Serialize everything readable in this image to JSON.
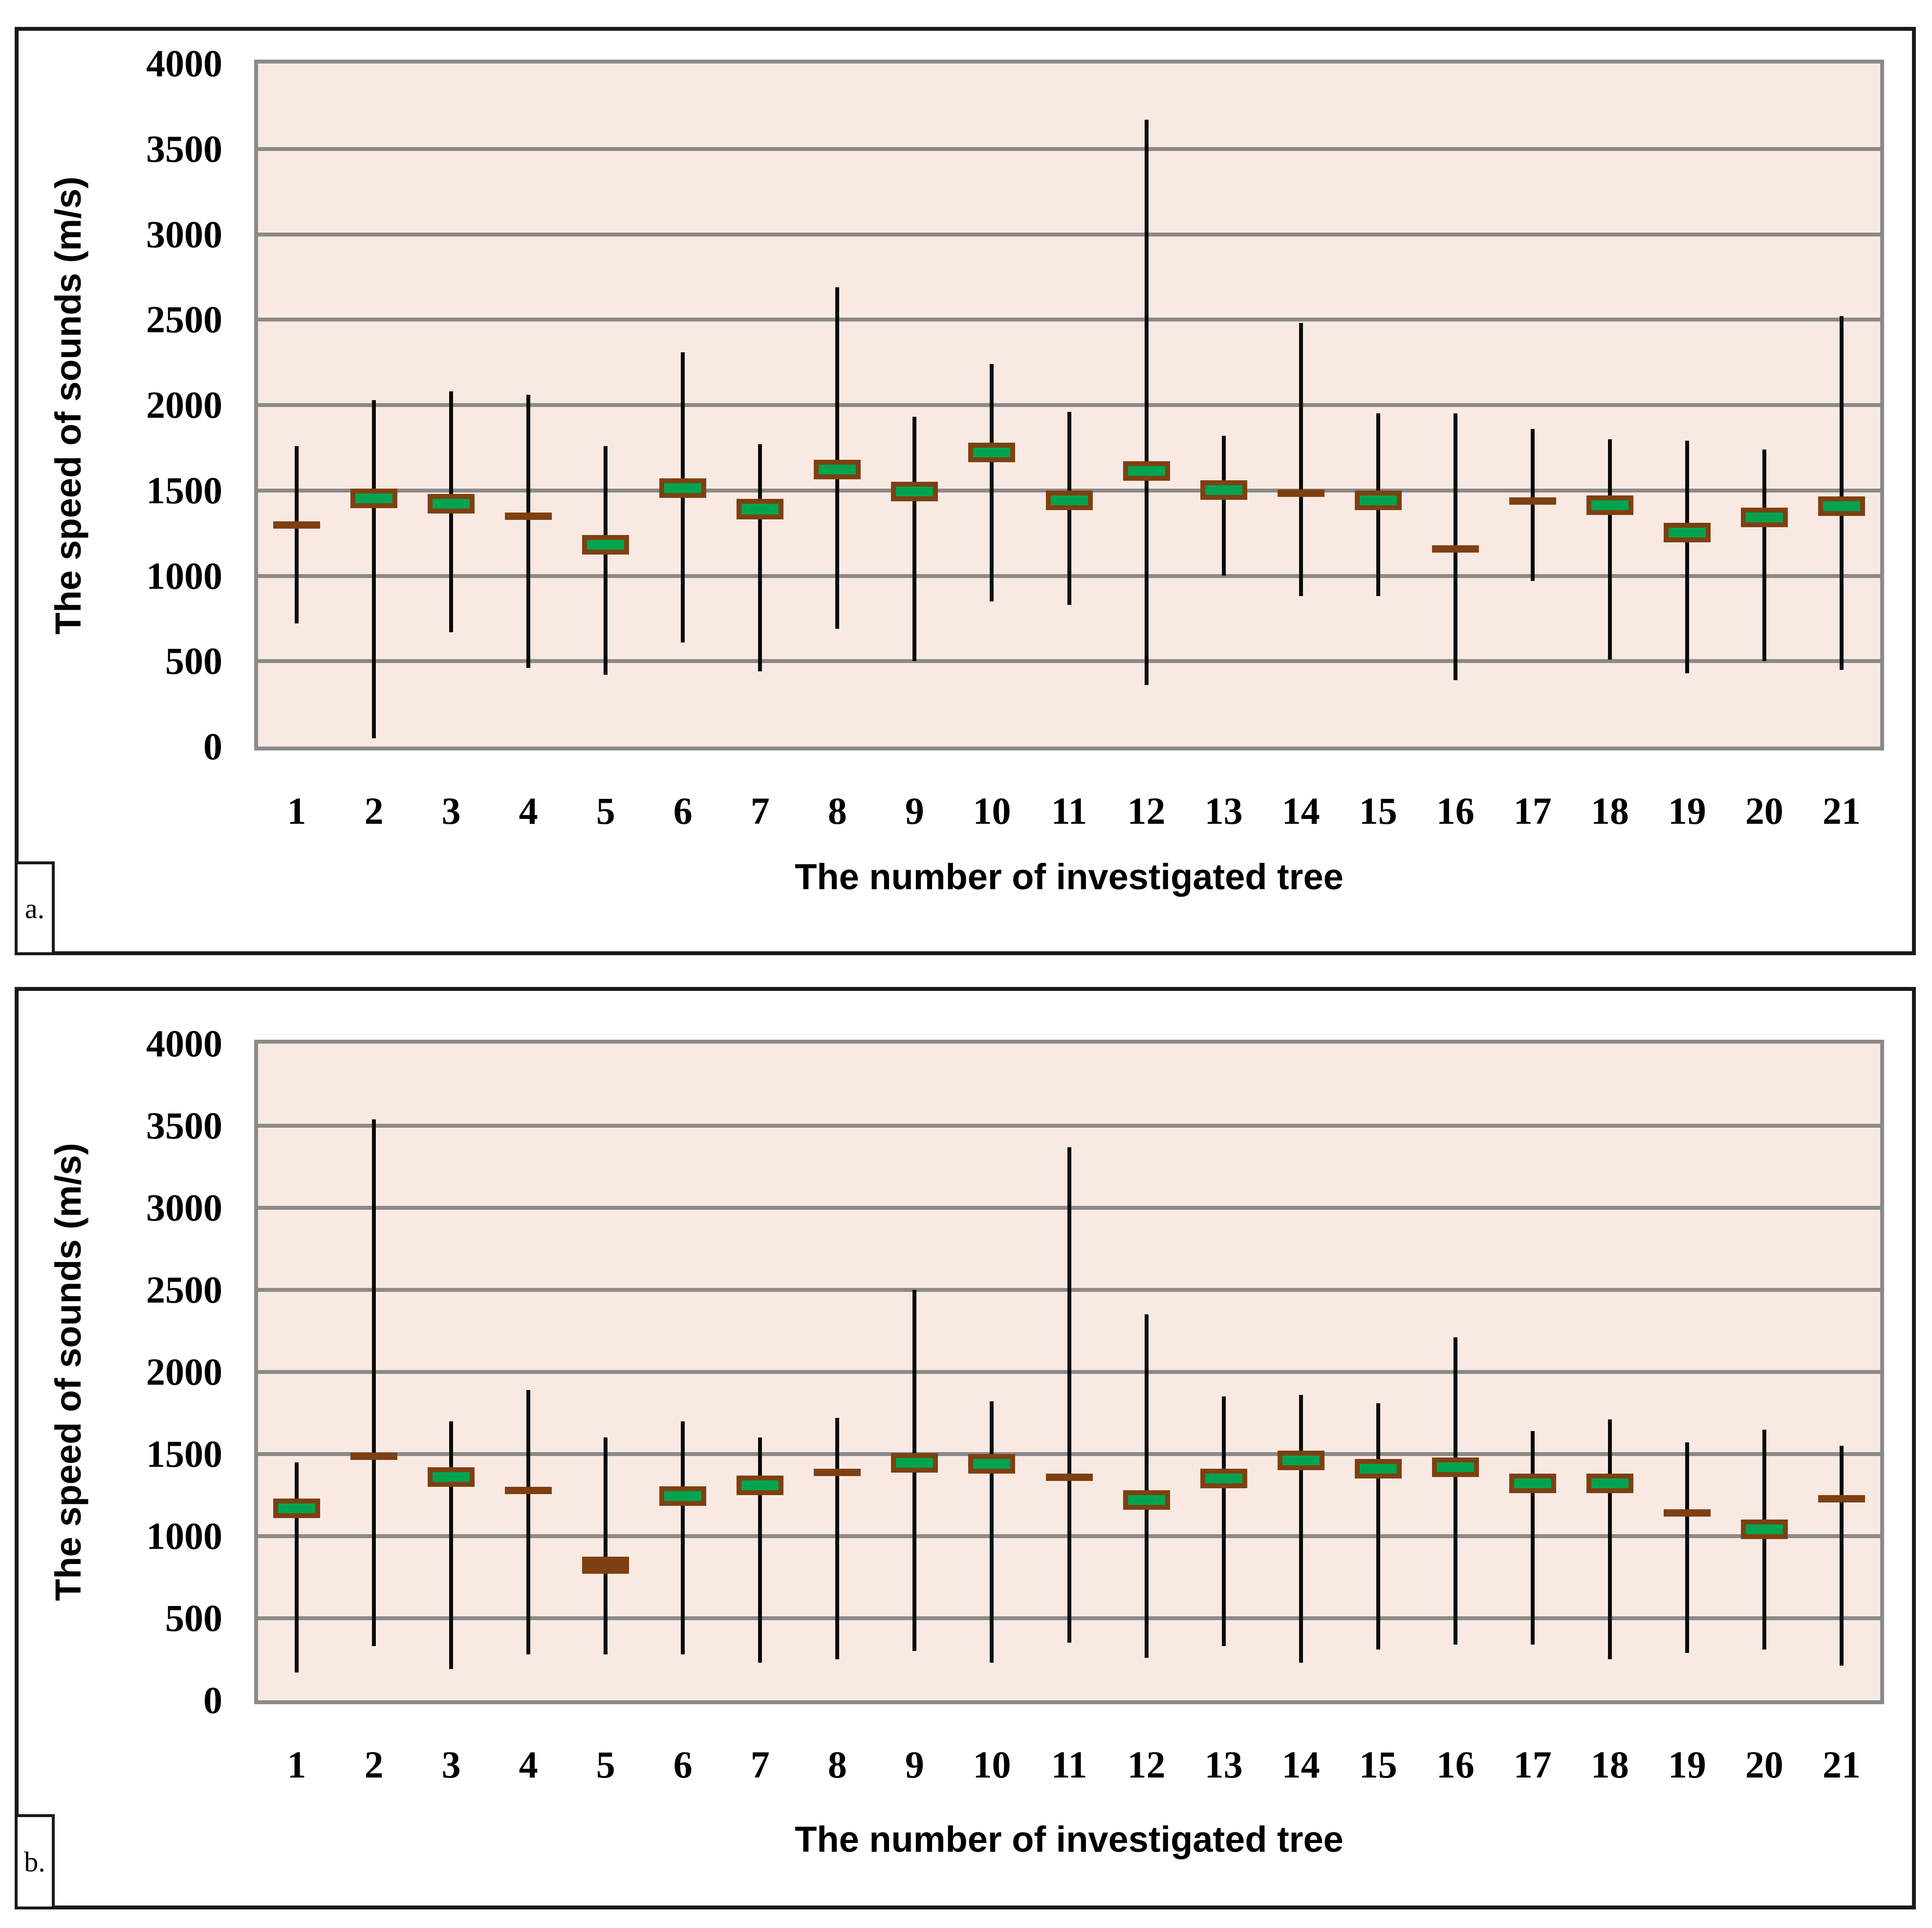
{
  "colors": {
    "plot_background": "#f9e9e3",
    "gridline": "#8a8a8a",
    "whisker": "#0a0a0a",
    "box_green_fill": "#00a44f",
    "box_brown_fill": "#7e4012",
    "box_border_brown": "#7e4012",
    "frame": "#1a1a1a",
    "text": "#000000"
  },
  "chart_data": [
    {
      "type": "box-whisker (high-low lines with open-close boxes)",
      "panel_label": "a.",
      "title": "",
      "xlabel": "The number of investigated tree",
      "ylabel": "The speed of sounds (m/s)",
      "ylim": [
        0,
        4000
      ],
      "ytick_interval": 500,
      "yticks": [
        "4000",
        "3500",
        "3000",
        "2500",
        "2000",
        "1500",
        "1000",
        "500",
        "0"
      ],
      "grid": true,
      "legend": "none",
      "categories": [
        1,
        2,
        3,
        4,
        5,
        6,
        7,
        8,
        9,
        10,
        11,
        12,
        13,
        14,
        15,
        16,
        17,
        18,
        19,
        20,
        21
      ],
      "series": [
        {
          "category": 1,
          "low": 720,
          "high": 1760,
          "box_low": 1280,
          "box_high": 1320,
          "box_color": "brown"
        },
        {
          "category": 2,
          "low": 50,
          "high": 2030,
          "box_low": 1400,
          "box_high": 1510,
          "box_color": "green"
        },
        {
          "category": 3,
          "low": 670,
          "high": 2080,
          "box_low": 1400,
          "box_high": 1480,
          "box_color": "green"
        },
        {
          "category": 4,
          "low": 460,
          "high": 2060,
          "box_low": 1330,
          "box_high": 1370,
          "box_color": "brown"
        },
        {
          "category": 5,
          "low": 420,
          "high": 1760,
          "box_low": 1160,
          "box_high": 1240,
          "box_color": "green"
        },
        {
          "category": 6,
          "low": 610,
          "high": 2310,
          "box_low": 1490,
          "box_high": 1570,
          "box_color": "green"
        },
        {
          "category": 7,
          "low": 440,
          "high": 1770,
          "box_low": 1330,
          "box_high": 1450,
          "box_color": "green"
        },
        {
          "category": 8,
          "low": 690,
          "high": 2690,
          "box_low": 1610,
          "box_high": 1680,
          "box_color": "green"
        },
        {
          "category": 9,
          "low": 500,
          "high": 1930,
          "box_low": 1480,
          "box_high": 1550,
          "box_color": "green"
        },
        {
          "category": 10,
          "low": 850,
          "high": 2240,
          "box_low": 1710,
          "box_high": 1780,
          "box_color": "green"
        },
        {
          "category": 11,
          "low": 830,
          "high": 1960,
          "box_low": 1440,
          "box_high": 1500,
          "box_color": "green"
        },
        {
          "category": 12,
          "low": 360,
          "high": 3670,
          "box_low": 1590,
          "box_high": 1670,
          "box_color": "green"
        },
        {
          "category": 13,
          "low": 1000,
          "high": 1820,
          "box_low": 1490,
          "box_high": 1560,
          "box_color": "green"
        },
        {
          "category": 14,
          "low": 880,
          "high": 2480,
          "box_low": 1465,
          "box_high": 1505,
          "box_color": "brown"
        },
        {
          "category": 15,
          "low": 880,
          "high": 1950,
          "box_low": 1450,
          "box_high": 1500,
          "box_color": "green"
        },
        {
          "category": 16,
          "low": 390,
          "high": 1950,
          "box_low": 1140,
          "box_high": 1180,
          "box_color": "brown"
        },
        {
          "category": 17,
          "low": 970,
          "high": 1860,
          "box_low": 1420,
          "box_high": 1460,
          "box_color": "brown"
        },
        {
          "category": 18,
          "low": 510,
          "high": 1800,
          "box_low": 1380,
          "box_high": 1470,
          "box_color": "green"
        },
        {
          "category": 19,
          "low": 430,
          "high": 1790,
          "box_low": 1270,
          "box_high": 1310,
          "box_color": "green"
        },
        {
          "category": 20,
          "low": 500,
          "high": 1740,
          "box_low": 1290,
          "box_high": 1400,
          "box_color": "green"
        },
        {
          "category": 21,
          "low": 450,
          "high": 2520,
          "box_low": 1425,
          "box_high": 1465,
          "box_color": "green"
        }
      ]
    },
    {
      "type": "box-whisker (high-low lines with open-close boxes)",
      "panel_label": "b.",
      "title": "",
      "xlabel": "The number of investigated tree",
      "ylabel": "The speed of sounds (m/s)",
      "ylim": [
        0,
        4000
      ],
      "ytick_interval": 500,
      "yticks": [
        "4000",
        "3500",
        "3000",
        "2500",
        "2000",
        "1500",
        "1000",
        "500",
        "0"
      ],
      "grid": true,
      "legend": "none",
      "categories": [
        1,
        2,
        3,
        4,
        5,
        6,
        7,
        8,
        9,
        10,
        11,
        12,
        13,
        14,
        15,
        16,
        17,
        18,
        19,
        20,
        21
      ],
      "series": [
        {
          "category": 1,
          "low": 170,
          "high": 1450,
          "box_low": 1190,
          "box_high": 1230,
          "box_color": "green"
        },
        {
          "category": 2,
          "low": 330,
          "high": 3540,
          "box_low": 1470,
          "box_high": 1510,
          "box_color": "brown"
        },
        {
          "category": 3,
          "low": 190,
          "high": 1700,
          "box_low": 1360,
          "box_high": 1420,
          "box_color": "green"
        },
        {
          "category": 4,
          "low": 280,
          "high": 1890,
          "box_low": 1260,
          "box_high": 1300,
          "box_color": "brown"
        },
        {
          "category": 5,
          "low": 280,
          "high": 1600,
          "box_low": 770,
          "box_high": 875,
          "box_color": "brown"
        },
        {
          "category": 6,
          "low": 280,
          "high": 1700,
          "box_low": 1265,
          "box_high": 1305,
          "box_color": "green"
        },
        {
          "category": 7,
          "low": 230,
          "high": 1600,
          "box_low": 1300,
          "box_high": 1370,
          "box_color": "green"
        },
        {
          "category": 8,
          "low": 250,
          "high": 1720,
          "box_low": 1370,
          "box_high": 1410,
          "box_color": "brown"
        },
        {
          "category": 9,
          "low": 300,
          "high": 2500,
          "box_low": 1430,
          "box_high": 1505,
          "box_color": "green"
        },
        {
          "category": 10,
          "low": 230,
          "high": 1820,
          "box_low": 1440,
          "box_high": 1500,
          "box_color": "green"
        },
        {
          "category": 11,
          "low": 350,
          "high": 3370,
          "box_low": 1340,
          "box_high": 1380,
          "box_color": "brown"
        },
        {
          "category": 12,
          "low": 260,
          "high": 2350,
          "box_low": 1230,
          "box_high": 1280,
          "box_color": "green"
        },
        {
          "category": 13,
          "low": 330,
          "high": 1850,
          "box_low": 1370,
          "box_high": 1410,
          "box_color": "green"
        },
        {
          "category": 14,
          "low": 230,
          "high": 1860,
          "box_low": 1480,
          "box_high": 1520,
          "box_color": "green"
        },
        {
          "category": 15,
          "low": 310,
          "high": 1810,
          "box_low": 1390,
          "box_high": 1470,
          "box_color": "green"
        },
        {
          "category": 16,
          "low": 340,
          "high": 2210,
          "box_low": 1440,
          "box_high": 1480,
          "box_color": "green"
        },
        {
          "category": 17,
          "low": 340,
          "high": 1640,
          "box_low": 1310,
          "box_high": 1380,
          "box_color": "green"
        },
        {
          "category": 18,
          "low": 250,
          "high": 1710,
          "box_low": 1280,
          "box_high": 1380,
          "box_color": "green"
        },
        {
          "category": 19,
          "low": 290,
          "high": 1570,
          "box_low": 1130,
          "box_high": 1165,
          "box_color": "brown"
        },
        {
          "category": 20,
          "low": 310,
          "high": 1650,
          "box_low": 1010,
          "box_high": 1100,
          "box_color": "green"
        },
        {
          "category": 21,
          "low": 210,
          "high": 1550,
          "box_low": 1210,
          "box_high": 1250,
          "box_color": "brown"
        }
      ]
    }
  ]
}
